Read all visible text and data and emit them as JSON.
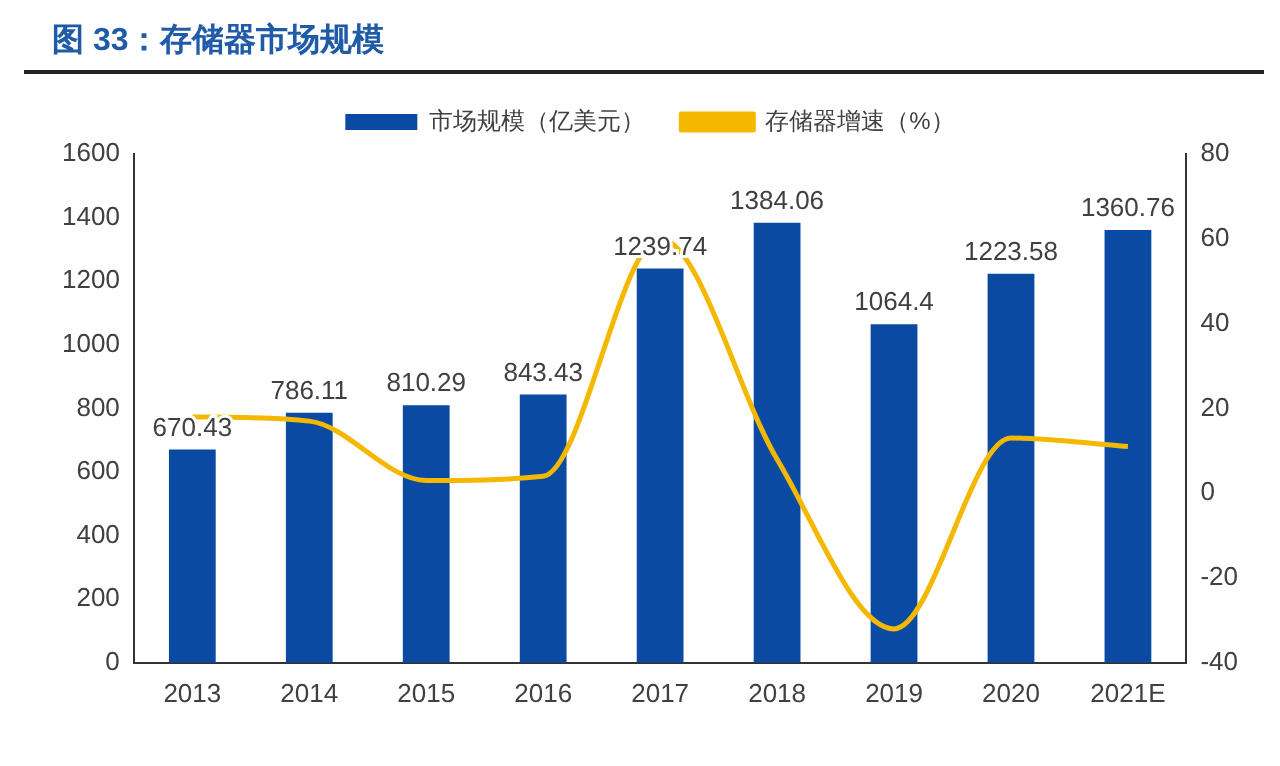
{
  "chart_data": {
    "type": "bar",
    "title": "图 33：存储器市场规模",
    "categories": [
      "2013",
      "2014",
      "2015",
      "2016",
      "2017",
      "2018",
      "2019",
      "2020",
      "2021E"
    ],
    "series": [
      {
        "name": "市场规模（亿美元）",
        "color": "#0b4aa2",
        "values": [
          670.43,
          786.11,
          810.29,
          843.43,
          1239.74,
          1384.06,
          1064.4,
          1223.58,
          1360.76
        ],
        "value_labels": [
          "670.43",
          "786.11",
          "810.29",
          "843.43",
          "1239.74",
          "1384.06",
          "1064.4",
          "1223.58",
          "1360.76"
        ]
      },
      {
        "name": "存储器增速（%）",
        "type": "line",
        "axis": "y2",
        "color": "#f5b800",
        "values": [
          18,
          17,
          3,
          4,
          60,
          8,
          -32,
          13,
          11
        ]
      }
    ],
    "ylim": [
      0,
      1600
    ],
    "yticks": [
      0,
      200,
      400,
      600,
      800,
      1000,
      1200,
      1400,
      1600
    ],
    "y2lim": [
      -40,
      80
    ],
    "y2ticks": [
      -40,
      -20,
      0,
      20,
      40,
      60,
      80
    ],
    "legend": "top",
    "grid": false,
    "marker": "none"
  }
}
